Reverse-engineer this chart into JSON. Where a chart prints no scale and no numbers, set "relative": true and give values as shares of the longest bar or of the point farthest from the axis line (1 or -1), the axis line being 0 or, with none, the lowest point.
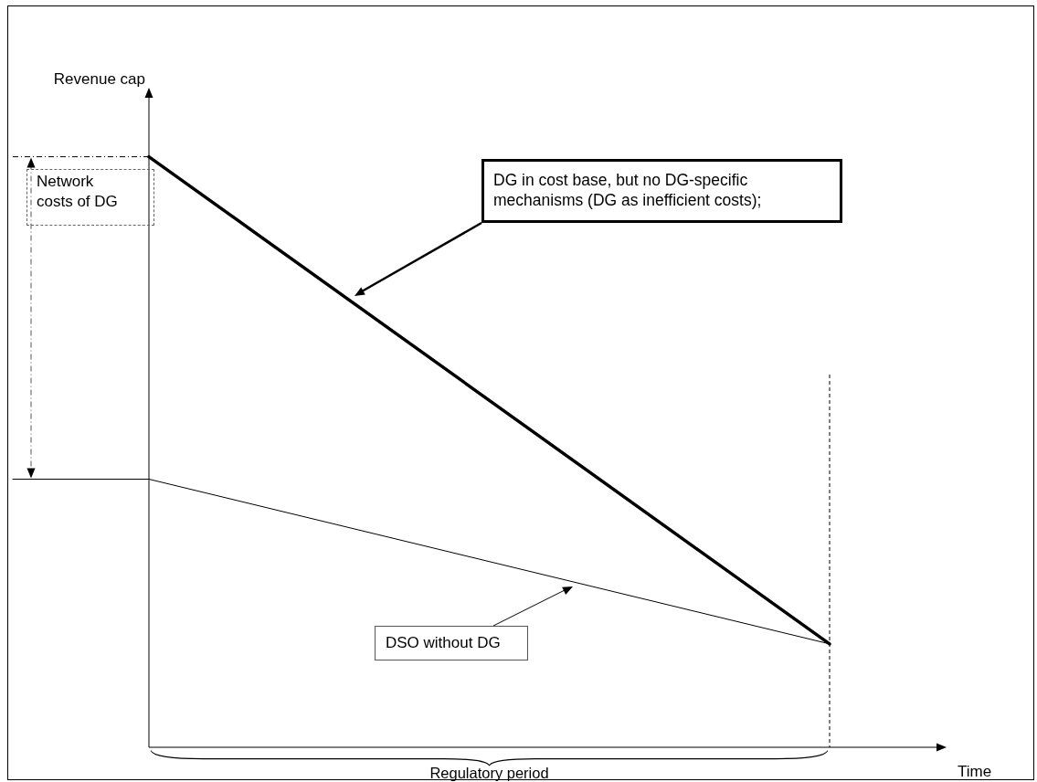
{
  "chart_data": {
    "type": "line",
    "relative": true,
    "xlabel": "Time",
    "ylabel": "Revenue cap",
    "marker": "none",
    "line_style": "solid",
    "categories": [
      null,
      null,
      null,
      null,
      null,
      null,
      null
    ],
    "series": [
      {
        "color": "#000000",
        "values": [
          null,
          1,
          null,
          null,
          null,
          null,
          0.175
        ]
      },
      {
        "color": "#000000",
        "values": [
          0.454,
          0.454,
          null,
          null,
          null,
          null,
          0.175
        ]
      }
    ],
    "annotations": [
      "Network costs of DG",
      "DG in cost base, but no DG-specific mechanisms (DG as inefficient costs);",
      "DSO without DG",
      "Regulatory period"
    ]
  }
}
